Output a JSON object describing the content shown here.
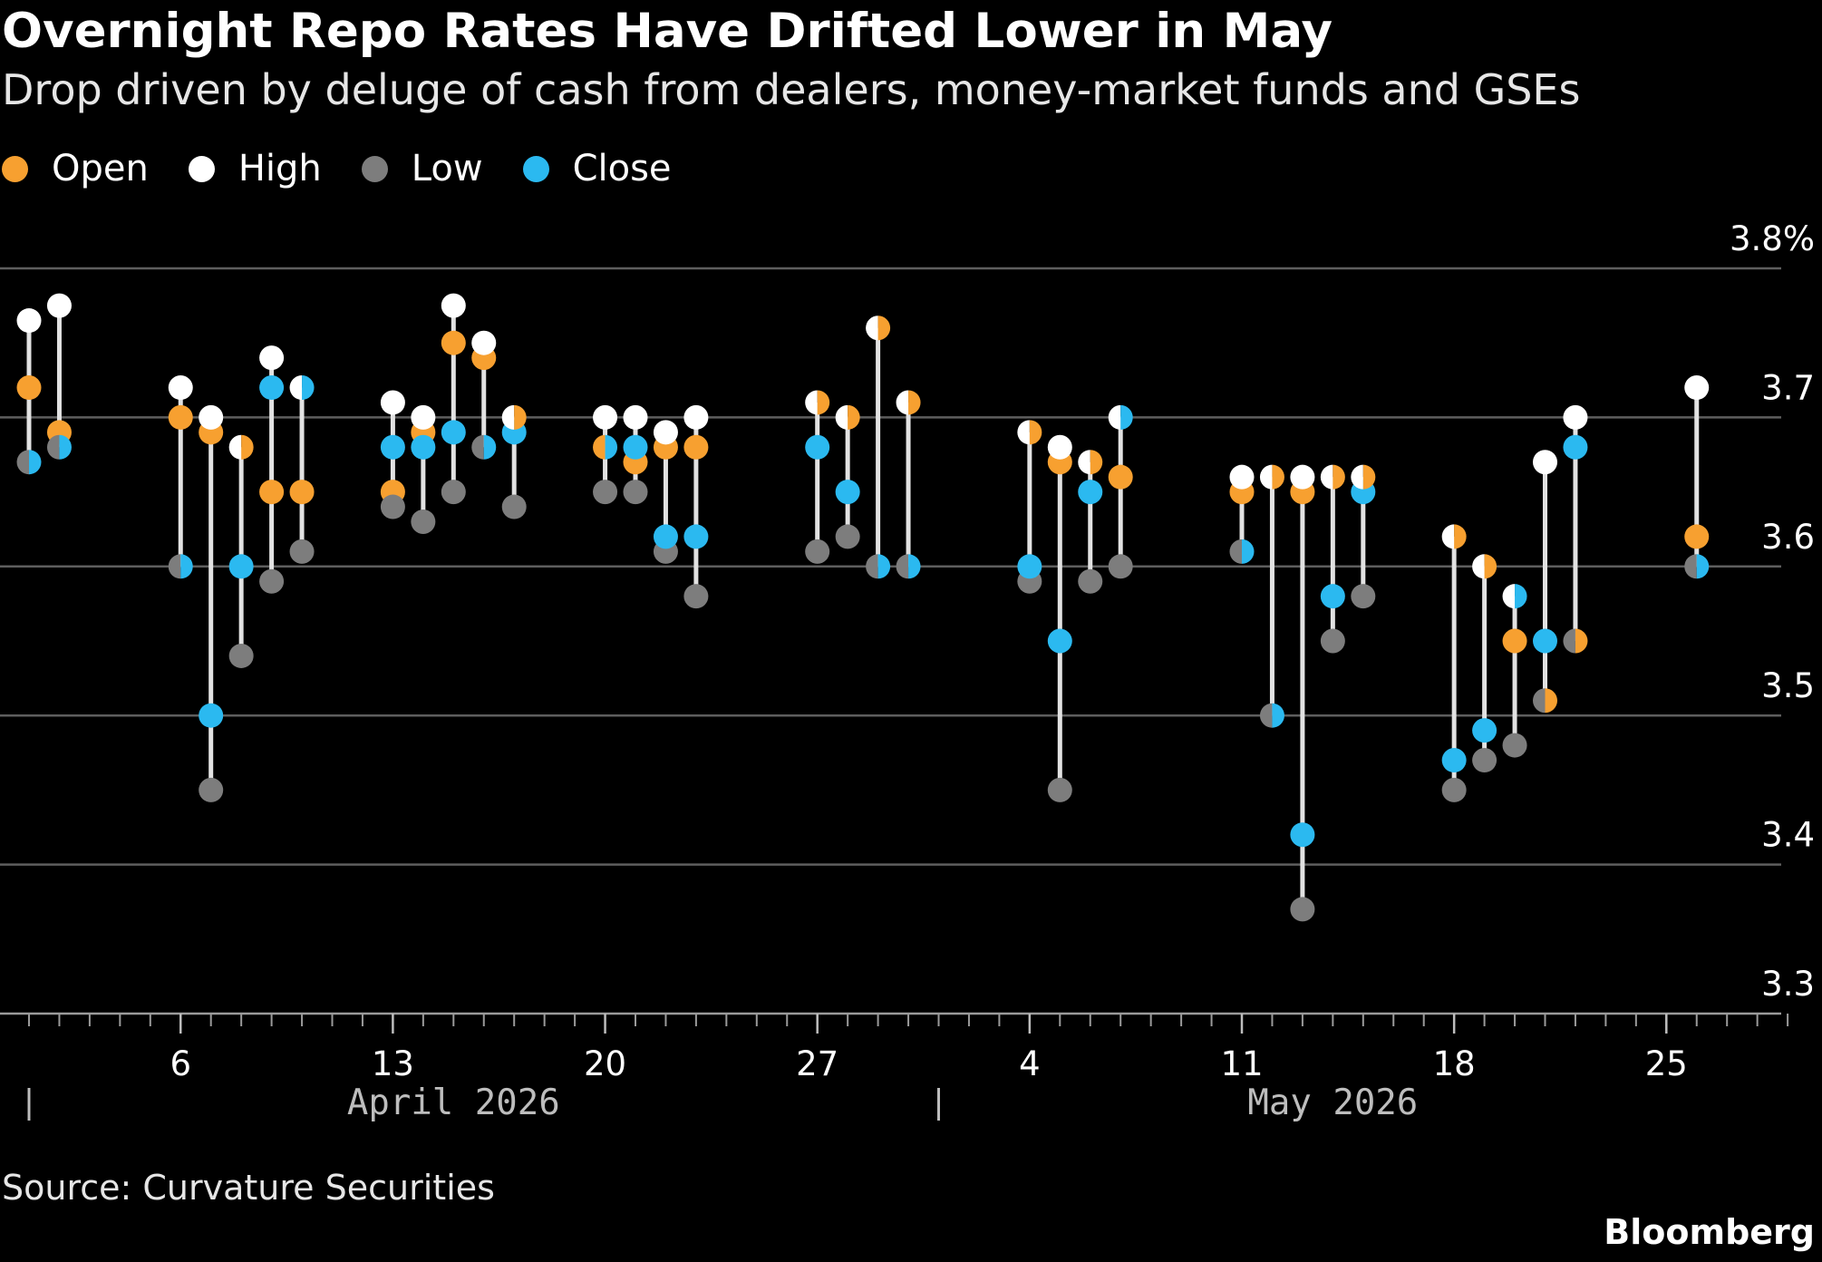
{
  "title": "Overnight Repo Rates Have Drifted Lower in May",
  "subtitle": "Drop driven by deluge of cash from dealers, money-market funds and GSEs",
  "legend": [
    {
      "label": "Open",
      "color": "#f7a030"
    },
    {
      "label": "High",
      "color": "#ffffff"
    },
    {
      "label": "Low",
      "color": "#7d7d7d"
    },
    {
      "label": "Close",
      "color": "#2bb9f0"
    }
  ],
  "source": "Source: Curvature Securities",
  "brand": "Bloomberg",
  "chart_data": {
    "type": "scatter",
    "subtype": "ohlc-dot",
    "series_order": [
      "open",
      "high",
      "low",
      "close"
    ],
    "yticks": [
      "3.3",
      "3.4",
      "3.5",
      "3.6",
      "3.7",
      "3.8%"
    ],
    "ylim": [
      3.3,
      3.8
    ],
    "grid": true,
    "legend_position": "top-left",
    "xticks": [
      {
        "date": "2026-04-06",
        "label": "6"
      },
      {
        "date": "2026-04-13",
        "label": "13"
      },
      {
        "date": "2026-04-20",
        "label": "20"
      },
      {
        "date": "2026-04-27",
        "label": "27"
      },
      {
        "date": "2026-05-04",
        "label": "4"
      },
      {
        "date": "2026-05-11",
        "label": "11"
      },
      {
        "date": "2026-05-18",
        "label": "18"
      },
      {
        "date": "2026-05-25",
        "label": "25"
      }
    ],
    "month_labels": [
      {
        "label": "April 2026",
        "center_date": "2026-04-15",
        "start_date": "2026-04-01"
      },
      {
        "label": "May 2026",
        "center_date": "2026-05-14",
        "start_date": "2026-05-01"
      }
    ],
    "xlim": [
      "2026-04-01",
      "2026-05-29"
    ],
    "points": [
      {
        "date": "2026-04-01",
        "open": 3.72,
        "high": 3.765,
        "low": 3.67,
        "close": 3.67
      },
      {
        "date": "2026-04-02",
        "open": 3.69,
        "high": 3.775,
        "low": 3.68,
        "close": 3.68
      },
      {
        "date": "2026-04-06",
        "open": 3.7,
        "high": 3.72,
        "low": 3.6,
        "close": 3.6
      },
      {
        "date": "2026-04-07",
        "open": 3.69,
        "high": 3.7,
        "low": 3.45,
        "close": 3.5
      },
      {
        "date": "2026-04-08",
        "open": 3.68,
        "high": 3.68,
        "low": 3.54,
        "close": 3.6
      },
      {
        "date": "2026-04-09",
        "open": 3.65,
        "high": 3.74,
        "low": 3.59,
        "close": 3.72
      },
      {
        "date": "2026-04-10",
        "open": 3.65,
        "high": 3.72,
        "low": 3.61,
        "close": 3.72
      },
      {
        "date": "2026-04-13",
        "open": 3.65,
        "high": 3.71,
        "low": 3.64,
        "close": 3.68
      },
      {
        "date": "2026-04-14",
        "open": 3.69,
        "high": 3.7,
        "low": 3.63,
        "close": 3.68
      },
      {
        "date": "2026-04-15",
        "open": 3.75,
        "high": 3.775,
        "low": 3.65,
        "close": 3.69
      },
      {
        "date": "2026-04-16",
        "open": 3.74,
        "high": 3.75,
        "low": 3.68,
        "close": 3.68
      },
      {
        "date": "2026-04-17",
        "open": 3.7,
        "high": 3.7,
        "low": 3.64,
        "close": 3.69
      },
      {
        "date": "2026-04-20",
        "open": 3.68,
        "high": 3.7,
        "low": 3.65,
        "close": 3.68
      },
      {
        "date": "2026-04-21",
        "open": 3.67,
        "high": 3.7,
        "low": 3.65,
        "close": 3.68
      },
      {
        "date": "2026-04-22",
        "open": 3.68,
        "high": 3.69,
        "low": 3.61,
        "close": 3.62
      },
      {
        "date": "2026-04-23",
        "open": 3.68,
        "high": 3.7,
        "low": 3.58,
        "close": 3.62
      },
      {
        "date": "2026-04-27",
        "open": 3.71,
        "high": 3.71,
        "low": 3.61,
        "close": 3.68
      },
      {
        "date": "2026-04-28",
        "open": 3.7,
        "high": 3.7,
        "low": 3.62,
        "close": 3.65
      },
      {
        "date": "2026-04-29",
        "open": 3.76,
        "high": 3.76,
        "low": 3.6,
        "close": 3.6
      },
      {
        "date": "2026-04-30",
        "open": 3.71,
        "high": 3.71,
        "low": 3.6,
        "close": 3.6
      },
      {
        "date": "2026-05-04",
        "open": 3.69,
        "high": 3.69,
        "low": 3.59,
        "close": 3.6
      },
      {
        "date": "2026-05-05",
        "open": 3.67,
        "high": 3.68,
        "low": 3.45,
        "close": 3.55
      },
      {
        "date": "2026-05-06",
        "open": 3.67,
        "high": 3.67,
        "low": 3.59,
        "close": 3.65
      },
      {
        "date": "2026-05-07",
        "open": 3.66,
        "high": 3.7,
        "low": 3.6,
        "close": 3.7
      },
      {
        "date": "2026-05-11",
        "open": 3.65,
        "high": 3.66,
        "low": 3.61,
        "close": 3.61
      },
      {
        "date": "2026-05-12",
        "open": 3.66,
        "high": 3.66,
        "low": 3.5,
        "close": 3.5
      },
      {
        "date": "2026-05-13",
        "open": 3.65,
        "high": 3.66,
        "low": 3.37,
        "close": 3.42
      },
      {
        "date": "2026-05-14",
        "open": 3.66,
        "high": 3.66,
        "low": 3.55,
        "close": 3.58
      },
      {
        "date": "2026-05-15",
        "open": 3.66,
        "high": 3.66,
        "low": 3.58,
        "close": 3.65
      },
      {
        "date": "2026-05-18",
        "open": 3.62,
        "high": 3.62,
        "low": 3.45,
        "close": 3.47
      },
      {
        "date": "2026-05-19",
        "open": 3.6,
        "high": 3.6,
        "low": 3.47,
        "close": 3.49
      },
      {
        "date": "2026-05-20",
        "open": 3.55,
        "high": 3.58,
        "low": 3.48,
        "close": 3.58
      },
      {
        "date": "2026-05-21",
        "open": 3.51,
        "high": 3.67,
        "low": 3.51,
        "close": 3.55
      },
      {
        "date": "2026-05-22",
        "open": 3.55,
        "high": 3.7,
        "low": 3.55,
        "close": 3.68
      },
      {
        "date": "2026-05-26",
        "open": 3.62,
        "high": 3.72,
        "low": 3.6,
        "close": 3.6
      }
    ]
  }
}
